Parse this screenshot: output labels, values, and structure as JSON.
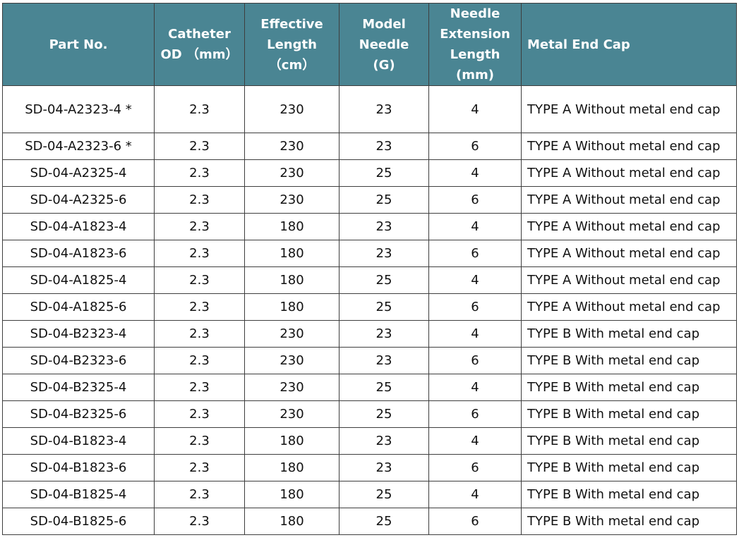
{
  "colors": {
    "header_bg": "#4a8593",
    "header_text": "#ffffff",
    "border": "#3e3e3e"
  },
  "table": {
    "headers": [
      [
        "Part No."
      ],
      [
        "Catheter",
        "OD （mm）"
      ],
      [
        "Effective",
        "Length",
        "（cm）"
      ],
      [
        "Model",
        "Needle",
        "(G)"
      ],
      [
        "Needle",
        "Extension",
        "Length",
        "(mm)"
      ],
      [
        "Metal End Cap"
      ]
    ],
    "rows": [
      [
        "SD-04-A2323-4 *",
        "2.3",
        "230",
        "23",
        "4",
        "TYPE A Without metal end cap"
      ],
      [
        "SD-04-A2323-6 *",
        "2.3",
        "230",
        "23",
        "6",
        "TYPE A Without metal end cap"
      ],
      [
        "SD-04-A2325-4",
        "2.3",
        "230",
        "25",
        "4",
        "TYPE A Without metal end cap"
      ],
      [
        "SD-04-A2325-6",
        "2.3",
        "230",
        "25",
        "6",
        "TYPE A Without metal end cap"
      ],
      [
        "SD-04-A1823-4",
        "2.3",
        "180",
        "23",
        "4",
        "TYPE A Without metal end cap"
      ],
      [
        "SD-04-A1823-6",
        "2.3",
        "180",
        "23",
        "6",
        "TYPE A Without metal end cap"
      ],
      [
        "SD-04-A1825-4",
        "2.3",
        "180",
        "25",
        "4",
        "TYPE A Without metal end cap"
      ],
      [
        "SD-04-A1825-6",
        "2.3",
        "180",
        "25",
        "6",
        "TYPE A Without metal end cap"
      ],
      [
        "SD-04-B2323-4",
        "2.3",
        "230",
        "23",
        "4",
        "TYPE B With metal end cap"
      ],
      [
        "SD-04-B2323-6",
        "2.3",
        "230",
        "23",
        "6",
        "TYPE B With metal end cap"
      ],
      [
        "SD-04-B2325-4",
        "2.3",
        "230",
        "25",
        "4",
        "TYPE B With metal end cap"
      ],
      [
        "SD-04-B2325-6",
        "2.3",
        "230",
        "25",
        "6",
        "TYPE B With metal end cap"
      ],
      [
        "SD-04-B1823-4",
        "2.3",
        "180",
        "23",
        "4",
        "TYPE B With metal end cap"
      ],
      [
        "SD-04-B1823-6",
        "2.3",
        "180",
        "23",
        "6",
        "TYPE B With metal end cap"
      ],
      [
        "SD-04-B1825-4",
        "2.3",
        "180",
        "25",
        "4",
        "TYPE B With metal end cap"
      ],
      [
        "SD-04-B1825-6",
        "2.3",
        "180",
        "25",
        "6",
        "TYPE B With metal end cap"
      ]
    ]
  }
}
